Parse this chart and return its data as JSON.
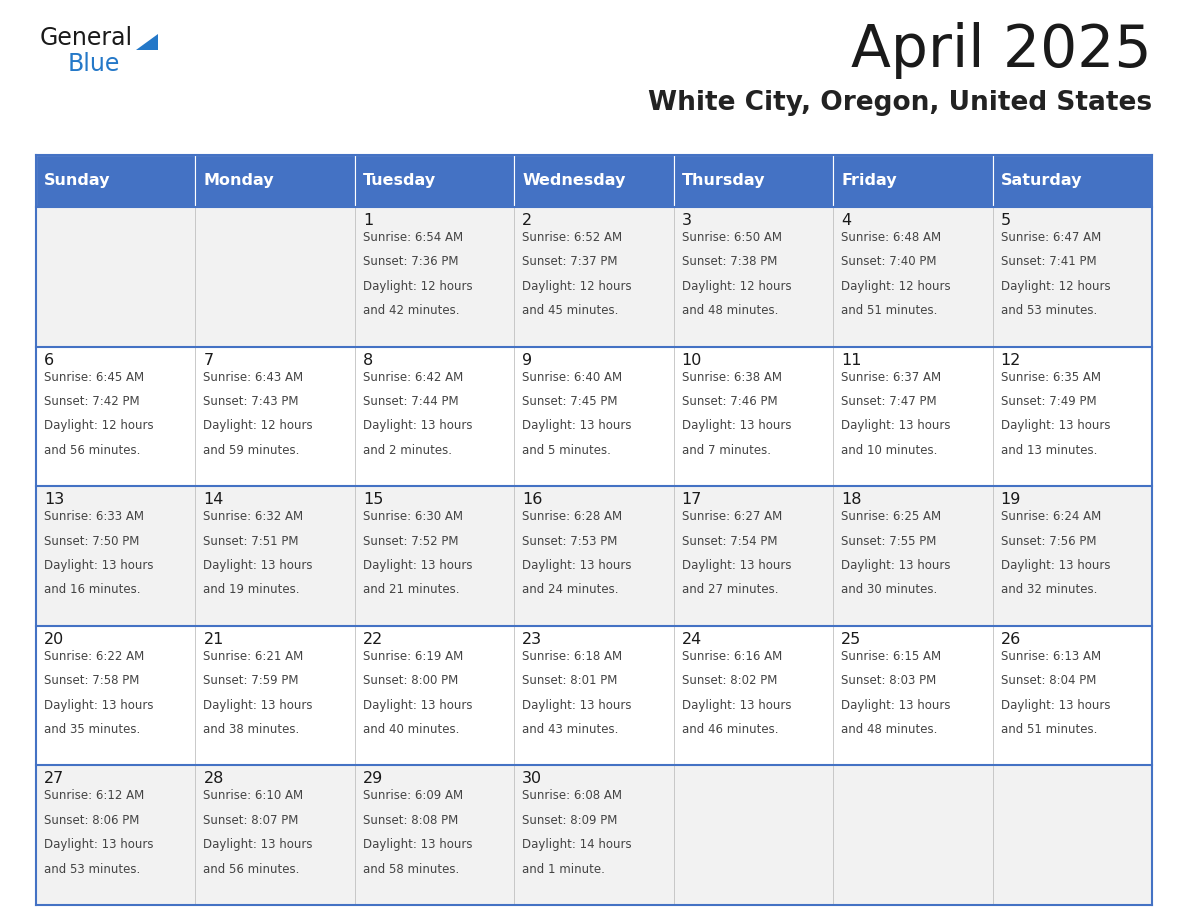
{
  "title": "April 2025",
  "subtitle": "White City, Oregon, United States",
  "header_bg": "#4472C4",
  "header_text": "#FFFFFF",
  "row_bg_odd": "#F2F2F2",
  "row_bg_even": "#FFFFFF",
  "border_color": "#4472C4",
  "day_headers": [
    "Sunday",
    "Monday",
    "Tuesday",
    "Wednesday",
    "Thursday",
    "Friday",
    "Saturday"
  ],
  "title_color": "#1a1a1a",
  "subtitle_color": "#222222",
  "cell_text_color": "#444444",
  "day_num_color": "#1a1a1a",
  "calendar": [
    [
      {
        "day": "",
        "sunrise": "",
        "sunset": "",
        "daylight": ""
      },
      {
        "day": "",
        "sunrise": "",
        "sunset": "",
        "daylight": ""
      },
      {
        "day": "1",
        "sunrise": "6:54 AM",
        "sunset": "7:36 PM",
        "daylight": "12 hours and 42 minutes."
      },
      {
        "day": "2",
        "sunrise": "6:52 AM",
        "sunset": "7:37 PM",
        "daylight": "12 hours and 45 minutes."
      },
      {
        "day": "3",
        "sunrise": "6:50 AM",
        "sunset": "7:38 PM",
        "daylight": "12 hours and 48 minutes."
      },
      {
        "day": "4",
        "sunrise": "6:48 AM",
        "sunset": "7:40 PM",
        "daylight": "12 hours and 51 minutes."
      },
      {
        "day": "5",
        "sunrise": "6:47 AM",
        "sunset": "7:41 PM",
        "daylight": "12 hours and 53 minutes."
      }
    ],
    [
      {
        "day": "6",
        "sunrise": "6:45 AM",
        "sunset": "7:42 PM",
        "daylight": "12 hours and 56 minutes."
      },
      {
        "day": "7",
        "sunrise": "6:43 AM",
        "sunset": "7:43 PM",
        "daylight": "12 hours and 59 minutes."
      },
      {
        "day": "8",
        "sunrise": "6:42 AM",
        "sunset": "7:44 PM",
        "daylight": "13 hours and 2 minutes."
      },
      {
        "day": "9",
        "sunrise": "6:40 AM",
        "sunset": "7:45 PM",
        "daylight": "13 hours and 5 minutes."
      },
      {
        "day": "10",
        "sunrise": "6:38 AM",
        "sunset": "7:46 PM",
        "daylight": "13 hours and 7 minutes."
      },
      {
        "day": "11",
        "sunrise": "6:37 AM",
        "sunset": "7:47 PM",
        "daylight": "13 hours and 10 minutes."
      },
      {
        "day": "12",
        "sunrise": "6:35 AM",
        "sunset": "7:49 PM",
        "daylight": "13 hours and 13 minutes."
      }
    ],
    [
      {
        "day": "13",
        "sunrise": "6:33 AM",
        "sunset": "7:50 PM",
        "daylight": "13 hours and 16 minutes."
      },
      {
        "day": "14",
        "sunrise": "6:32 AM",
        "sunset": "7:51 PM",
        "daylight": "13 hours and 19 minutes."
      },
      {
        "day": "15",
        "sunrise": "6:30 AM",
        "sunset": "7:52 PM",
        "daylight": "13 hours and 21 minutes."
      },
      {
        "day": "16",
        "sunrise": "6:28 AM",
        "sunset": "7:53 PM",
        "daylight": "13 hours and 24 minutes."
      },
      {
        "day": "17",
        "sunrise": "6:27 AM",
        "sunset": "7:54 PM",
        "daylight": "13 hours and 27 minutes."
      },
      {
        "day": "18",
        "sunrise": "6:25 AM",
        "sunset": "7:55 PM",
        "daylight": "13 hours and 30 minutes."
      },
      {
        "day": "19",
        "sunrise": "6:24 AM",
        "sunset": "7:56 PM",
        "daylight": "13 hours and 32 minutes."
      }
    ],
    [
      {
        "day": "20",
        "sunrise": "6:22 AM",
        "sunset": "7:58 PM",
        "daylight": "13 hours and 35 minutes."
      },
      {
        "day": "21",
        "sunrise": "6:21 AM",
        "sunset": "7:59 PM",
        "daylight": "13 hours and 38 minutes."
      },
      {
        "day": "22",
        "sunrise": "6:19 AM",
        "sunset": "8:00 PM",
        "daylight": "13 hours and 40 minutes."
      },
      {
        "day": "23",
        "sunrise": "6:18 AM",
        "sunset": "8:01 PM",
        "daylight": "13 hours and 43 minutes."
      },
      {
        "day": "24",
        "sunrise": "6:16 AM",
        "sunset": "8:02 PM",
        "daylight": "13 hours and 46 minutes."
      },
      {
        "day": "25",
        "sunrise": "6:15 AM",
        "sunset": "8:03 PM",
        "daylight": "13 hours and 48 minutes."
      },
      {
        "day": "26",
        "sunrise": "6:13 AM",
        "sunset": "8:04 PM",
        "daylight": "13 hours and 51 minutes."
      }
    ],
    [
      {
        "day": "27",
        "sunrise": "6:12 AM",
        "sunset": "8:06 PM",
        "daylight": "13 hours and 53 minutes."
      },
      {
        "day": "28",
        "sunrise": "6:10 AM",
        "sunset": "8:07 PM",
        "daylight": "13 hours and 56 minutes."
      },
      {
        "day": "29",
        "sunrise": "6:09 AM",
        "sunset": "8:08 PM",
        "daylight": "13 hours and 58 minutes."
      },
      {
        "day": "30",
        "sunrise": "6:08 AM",
        "sunset": "8:09 PM",
        "daylight": "14 hours and 1 minute."
      },
      {
        "day": "",
        "sunrise": "",
        "sunset": "",
        "daylight": ""
      },
      {
        "day": "",
        "sunrise": "",
        "sunset": "",
        "daylight": ""
      },
      {
        "day": "",
        "sunrise": "",
        "sunset": "",
        "daylight": ""
      }
    ]
  ]
}
